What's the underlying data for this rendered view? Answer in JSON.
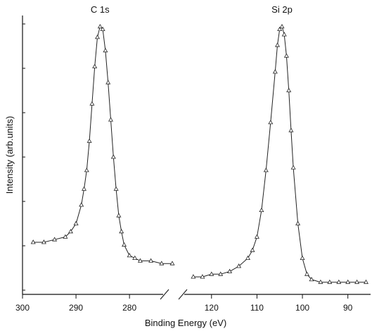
{
  "chart_data": {
    "type": "line",
    "title": "",
    "xlabel": "Binding Energy (eV)",
    "ylabel": "Intensity  (arb.units)",
    "grid": false,
    "legend": "none",
    "broken_axis": true,
    "left_panel": {
      "xlim": [
        300,
        272
      ],
      "ticks": [
        300,
        290,
        280
      ],
      "peak_label": "C 1s",
      "x": [
        298,
        296,
        294,
        292,
        291,
        290,
        289,
        288.5,
        288,
        287.5,
        287,
        286.5,
        286,
        285.5,
        285,
        284.5,
        284,
        283.5,
        283,
        282.5,
        282,
        281.5,
        281,
        280,
        279,
        278,
        276,
        274,
        272
      ],
      "y": [
        0.18,
        0.18,
        0.19,
        0.2,
        0.22,
        0.25,
        0.32,
        0.38,
        0.45,
        0.56,
        0.7,
        0.84,
        0.95,
        0.99,
        0.98,
        0.9,
        0.78,
        0.64,
        0.5,
        0.38,
        0.28,
        0.22,
        0.17,
        0.13,
        0.12,
        0.11,
        0.11,
        0.1,
        0.1
      ]
    },
    "right_panel": {
      "xlim": [
        126,
        85
      ],
      "ticks": [
        120,
        110,
        100,
        90
      ],
      "peak_label": "Si 2p",
      "x": [
        124,
        122,
        120,
        118,
        116,
        114,
        112,
        111,
        110,
        109,
        108,
        107,
        106,
        105.5,
        105,
        104.5,
        104,
        103.5,
        103,
        102.5,
        102,
        101,
        100,
        99,
        98,
        96,
        94,
        92,
        90,
        88,
        86
      ],
      "y": [
        0.05,
        0.05,
        0.06,
        0.06,
        0.07,
        0.09,
        0.12,
        0.15,
        0.2,
        0.3,
        0.45,
        0.63,
        0.82,
        0.92,
        0.98,
        0.99,
        0.96,
        0.88,
        0.75,
        0.6,
        0.46,
        0.25,
        0.12,
        0.06,
        0.04,
        0.03,
        0.03,
        0.03,
        0.03,
        0.03,
        0.03
      ]
    },
    "line_color": "#222222",
    "marker": "triangle-open"
  }
}
